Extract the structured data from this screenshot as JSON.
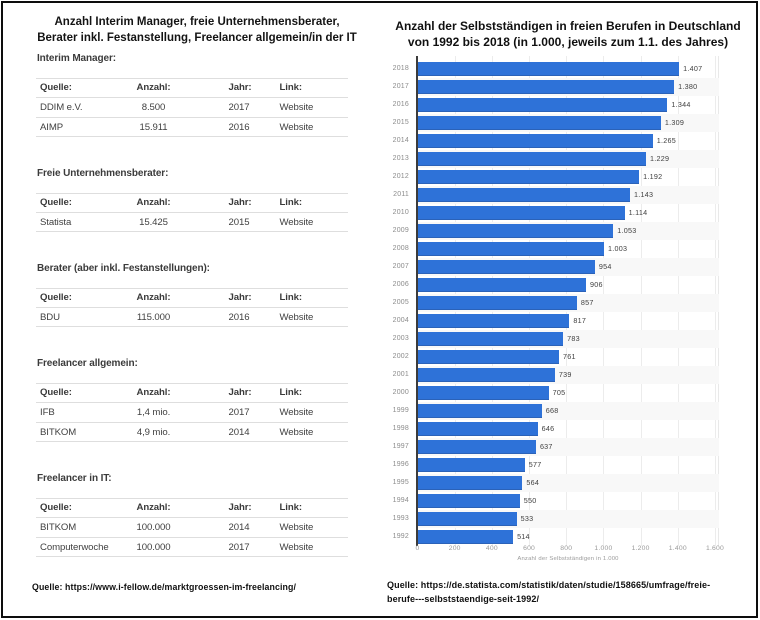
{
  "left_panel": {
    "title_line1": "Anzahl Interim Manager, freie Unternehmensberater,",
    "title_line2": "Berater inkl. Festanstellung, Freelancer allgemein/in der IT",
    "column_headers": {
      "quelle": "Quelle:",
      "anzahl": "Anzahl:",
      "jahr": "Jahr:",
      "link": "Link:"
    },
    "sections": [
      {
        "heading": "Interim Manager:",
        "rows": [
          {
            "quelle": "DDIM e.V.",
            "anzahl": "8.500",
            "jahr": "2017",
            "link": "Website"
          },
          {
            "quelle": "AIMP",
            "anzahl": "15.911",
            "jahr": "2016",
            "link": "Website"
          }
        ]
      },
      {
        "heading": "Freie Unternehmensberater:",
        "rows": [
          {
            "quelle": "Statista",
            "anzahl": "15.425",
            "jahr": "2015",
            "link": "Website"
          }
        ]
      },
      {
        "heading": "Berater (aber inkl. Festanstellungen):",
        "rows": [
          {
            "quelle": "BDU",
            "anzahl": "115.000",
            "jahr": "2016",
            "link": "Website"
          }
        ]
      },
      {
        "heading": "Freelancer allgemein:",
        "rows": [
          {
            "quelle": "IFB",
            "anzahl": "1,4 mio.",
            "jahr": "2017",
            "link": "Website"
          },
          {
            "quelle": "BITKOM",
            "anzahl": "4,9 mio.",
            "jahr": "2014",
            "link": "Website"
          }
        ]
      },
      {
        "heading": "Freelancer in IT:",
        "rows": [
          {
            "quelle": "BITKOM",
            "anzahl": "100.000",
            "jahr": "2014",
            "link": "Website"
          },
          {
            "quelle": "Computerwoche",
            "anzahl": "100.000",
            "jahr": "2017",
            "link": "Website"
          }
        ]
      }
    ],
    "source": "Quelle: https://www.i-fellow.de/marktgroessen-im-freelancing/"
  },
  "chart": {
    "title_line1": "Anzahl der Selbstständigen in freien Berufen in Deutschland",
    "title_line2": "von 1992 bis 2018 (in 1.000, jeweils zum 1.1. des Jahres)",
    "source": "Quelle: https://de.statista.com/statistik/daten/studie/158665/umfrage/freie-berufe---selbststaendige-seit-1992/",
    "bar_color": "#2e72d8"
  },
  "chart_data": {
    "type": "bar",
    "orientation": "horizontal",
    "title": "Anzahl der Selbstständigen in freien Berufen in Deutschland von 1992 bis 2018 (in 1.000, jeweils zum 1.1. des Jahres)",
    "xlabel": "Anzahl der Selbstständigen in 1.000",
    "ylabel": "",
    "xlim": [
      0,
      1600
    ],
    "x_ticks": [
      "0",
      "200",
      "400",
      "600",
      "800",
      "1.000",
      "1.200",
      "1.400",
      "1.600"
    ],
    "categories": [
      "2018",
      "2017",
      "2016",
      "2015",
      "2014",
      "2013",
      "2012",
      "2011",
      "2010",
      "2009",
      "2008",
      "2007",
      "2006",
      "2005",
      "2004",
      "2003",
      "2002",
      "2001",
      "2000",
      "1999",
      "1998",
      "1997",
      "1996",
      "1995",
      "1994",
      "1993",
      "1992"
    ],
    "values": [
      1407,
      1380,
      1344,
      1309,
      1265,
      1229,
      1192,
      1143,
      1114,
      1053,
      1003,
      954,
      906,
      857,
      817,
      783,
      761,
      739,
      705,
      668,
      646,
      637,
      577,
      564,
      550,
      533,
      514
    ],
    "value_labels": [
      "1.407",
      "1.380",
      "1.344",
      "1.309",
      "1.265",
      "1.229",
      "1.192",
      "1.143",
      "1.114",
      "1.053",
      "1.003",
      "954",
      "906",
      "857",
      "817",
      "783",
      "761",
      "739",
      "705",
      "668",
      "646",
      "637",
      "577",
      "564",
      "550",
      "533",
      "514"
    ],
    "grid": "vertical",
    "legend": "none"
  }
}
